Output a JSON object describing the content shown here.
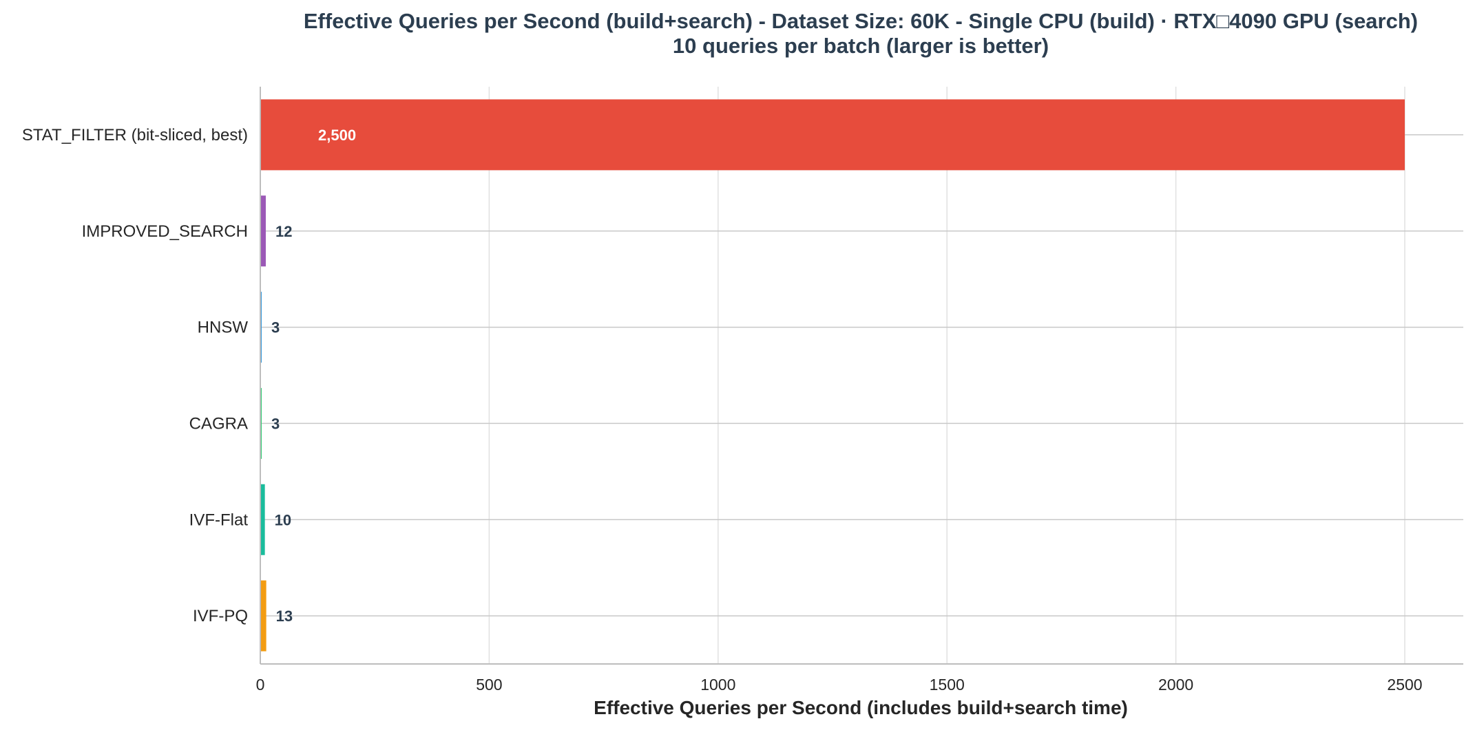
{
  "chart_data": {
    "type": "bar",
    "orientation": "horizontal",
    "title": [
      "Effective Queries per Second (build+search) - Dataset Size: 60K - Single CPU (build) · RTX□4090 GPU (search)",
      "10 queries per batch (larger is better)"
    ],
    "xlabel": "Effective Queries per Second (includes build+search time)",
    "ylabel": "",
    "xlim": [
      0,
      2500
    ],
    "xticks": [
      "0",
      "500",
      "1000",
      "1500",
      "2000",
      "2500"
    ],
    "grid": true,
    "legend": "none",
    "categories": [
      "STAT_FILTER (bit-sliced, best)",
      "IMPROVED_SEARCH",
      "HNSW",
      "CAGRA",
      "IVF-Flat",
      "IVF-PQ"
    ],
    "values": [
      2500,
      12,
      3,
      3,
      10,
      13
    ],
    "value_labels": [
      "2,500",
      "12",
      "3",
      "3",
      "10",
      "13"
    ],
    "colors": [
      "#e74c3c",
      "#9b59b6",
      "#3498db",
      "#2ecc71",
      "#1abc9c",
      "#f39c12"
    ],
    "value_label_colors": [
      "#ffffff",
      "#2c3e50",
      "#2c3e50",
      "#2c3e50",
      "#2c3e50",
      "#2c3e50"
    ]
  }
}
